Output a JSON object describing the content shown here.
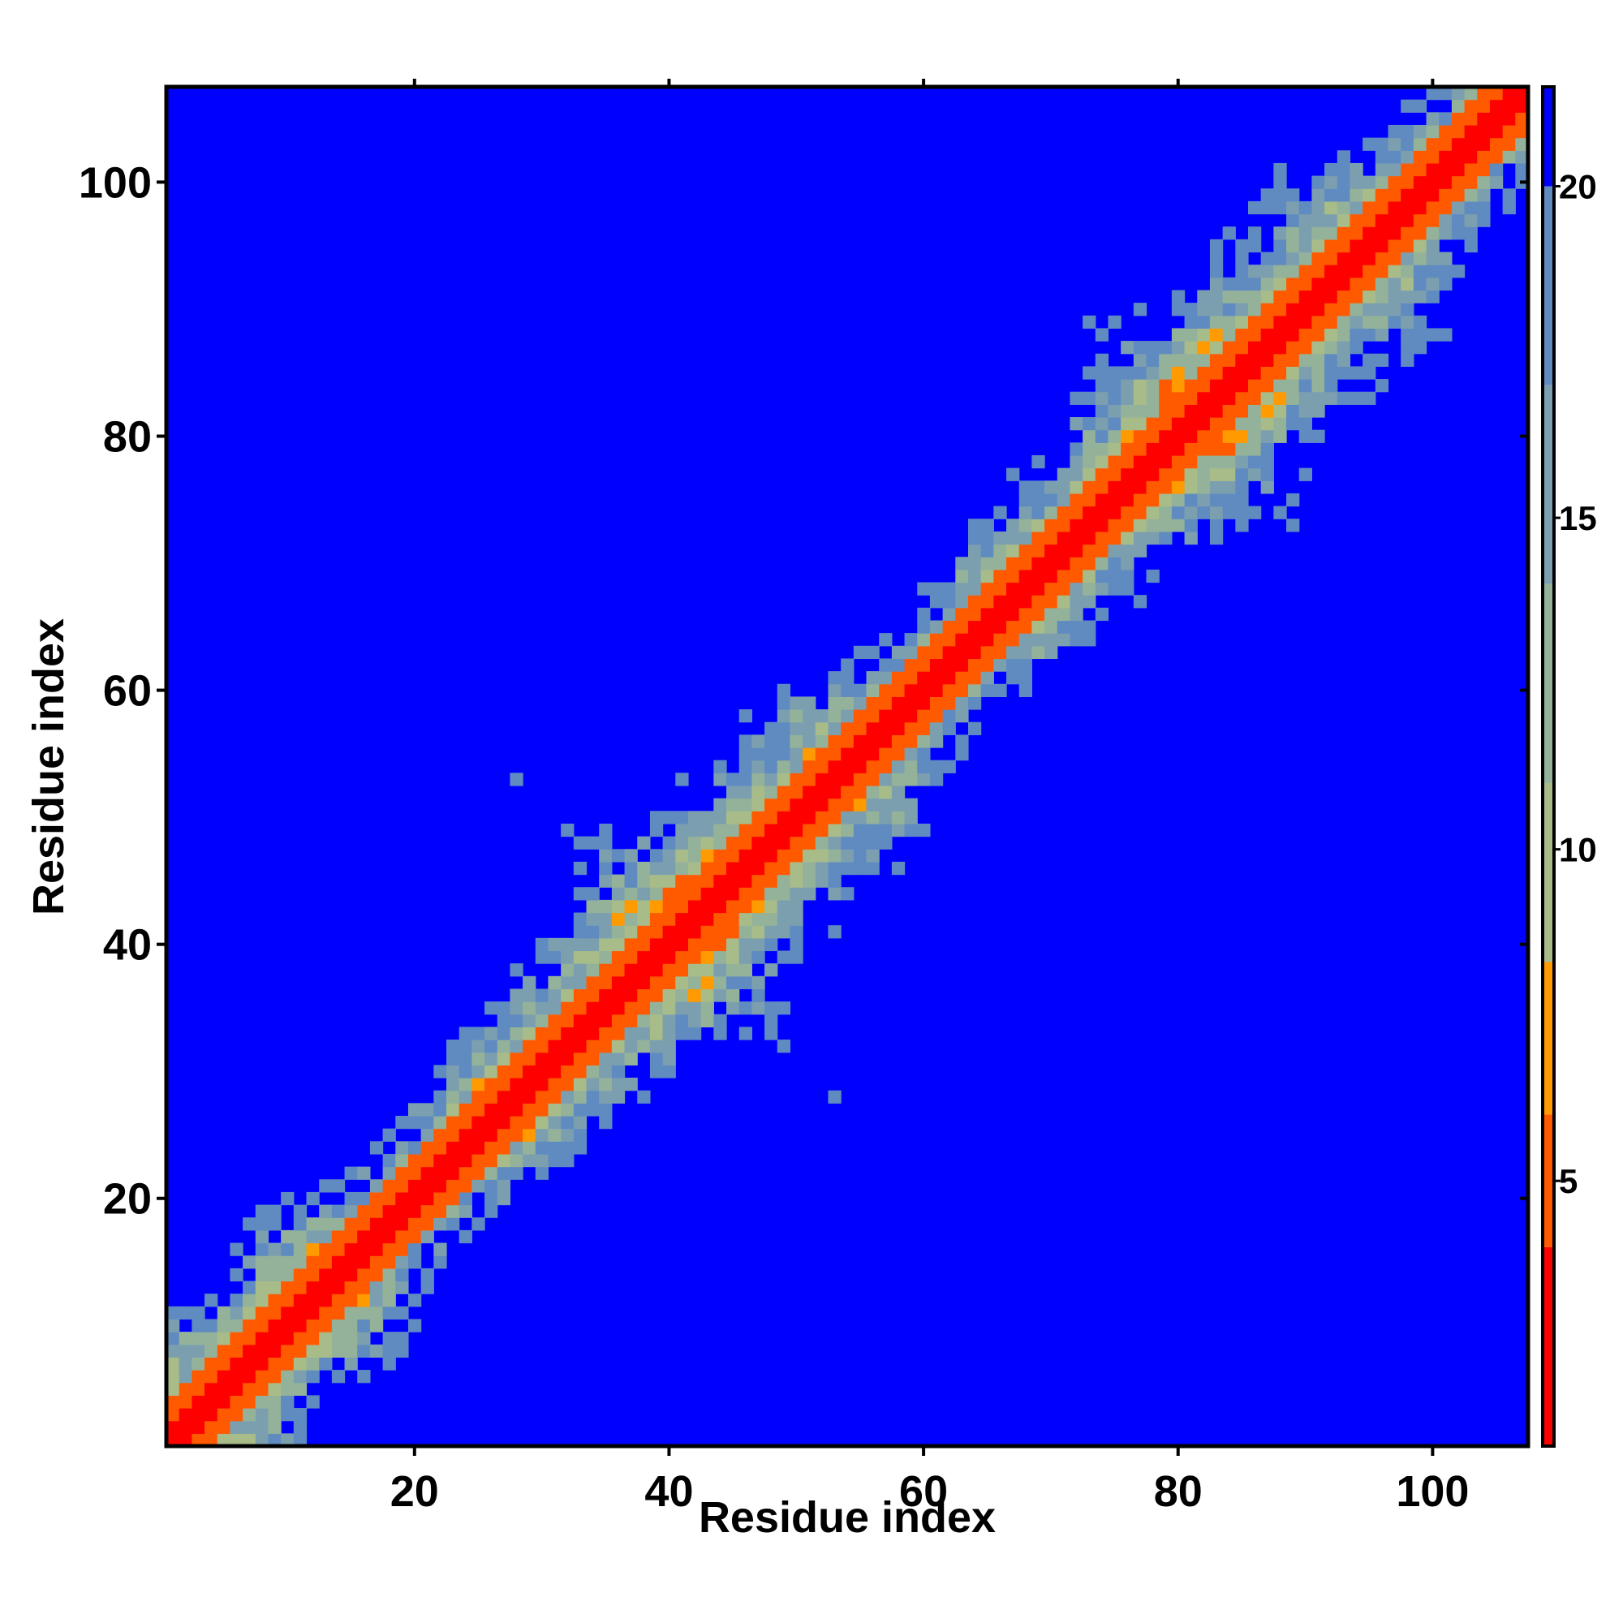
{
  "chart_data": {
    "type": "heatmap",
    "title": "",
    "xlabel": "Residue index",
    "ylabel": "Residue index",
    "x_range": [
      1,
      107
    ],
    "y_range": [
      1,
      107
    ],
    "x_ticks": [
      20,
      40,
      60,
      80,
      100
    ],
    "x_tick_labels": [
      "20",
      "40",
      "60",
      "80",
      "100"
    ],
    "y_ticks": [
      20,
      40,
      60,
      80,
      100
    ],
    "y_tick_labels": [
      "20",
      "40",
      "60",
      "80",
      "100"
    ],
    "symmetric": true,
    "value_description": "pairwise residue distance map, low values (red) along diagonal, high values (blue) far from diagonal",
    "colorbar": {
      "range": [
        1,
        21.5
      ],
      "ticks": [
        5,
        10,
        15,
        20
      ],
      "tick_labels": [
        "5",
        "10",
        "15",
        "20"
      ],
      "placement": "right",
      "colors": [
        {
          "max": 4,
          "color": "#ff0000"
        },
        {
          "max": 6,
          "color": "#ff5a00"
        },
        {
          "max": 8.3,
          "color": "#ff9a00"
        },
        {
          "max": 11,
          "color": "#a8bc8a"
        },
        {
          "max": 14,
          "color": "#94b29a"
        },
        {
          "max": 17,
          "color": "#7c9fb0"
        },
        {
          "max": 20,
          "color": "#5f8bc0"
        },
        {
          "max": 99,
          "color": "#0000ff"
        }
      ]
    },
    "gap_color": "#0000ff",
    "grid": false
  }
}
